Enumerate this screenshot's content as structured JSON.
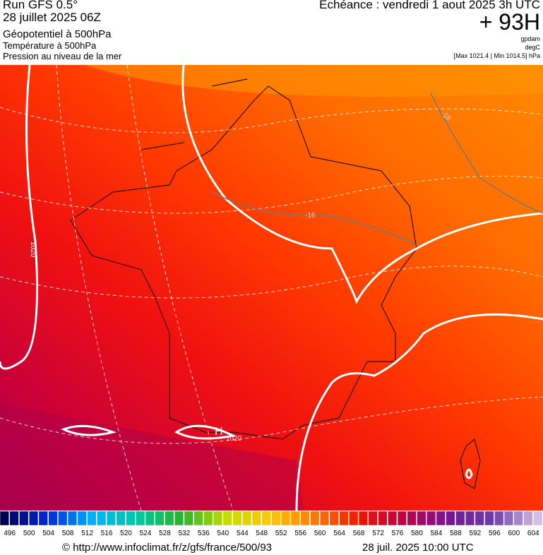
{
  "header": {
    "run": "Run GFS 0.5°",
    "run_date": "28 juillet 2025 06Z",
    "field1": "Géopotentiel à 500hPa",
    "field2": "Température à 500hPa",
    "field3": "Pression au niveau de la mer",
    "valid": "Echéance : vendredi 1 aout 2025 3h UTC",
    "lead": "+ 93H",
    "unit1": "gpdam",
    "unit2": "degC",
    "unit3": "[Max 1021.4 | Min 1014.5] hPa"
  },
  "map": {
    "labels": [
      "-16",
      "-16",
      "1020",
      "1020",
      "H"
    ]
  },
  "colorbar": {
    "labels": [
      496,
      500,
      504,
      508,
      512,
      516,
      520,
      524,
      528,
      532,
      536,
      540,
      544,
      548,
      552,
      556,
      560,
      564,
      568,
      572,
      576,
      580,
      584,
      588,
      592,
      596,
      600,
      604
    ]
  },
  "footer": {
    "url": "© http://www.infoclimat.fr/z/gfs/france/500/93",
    "date": "28 juil. 2025 10:00 UTC"
  }
}
